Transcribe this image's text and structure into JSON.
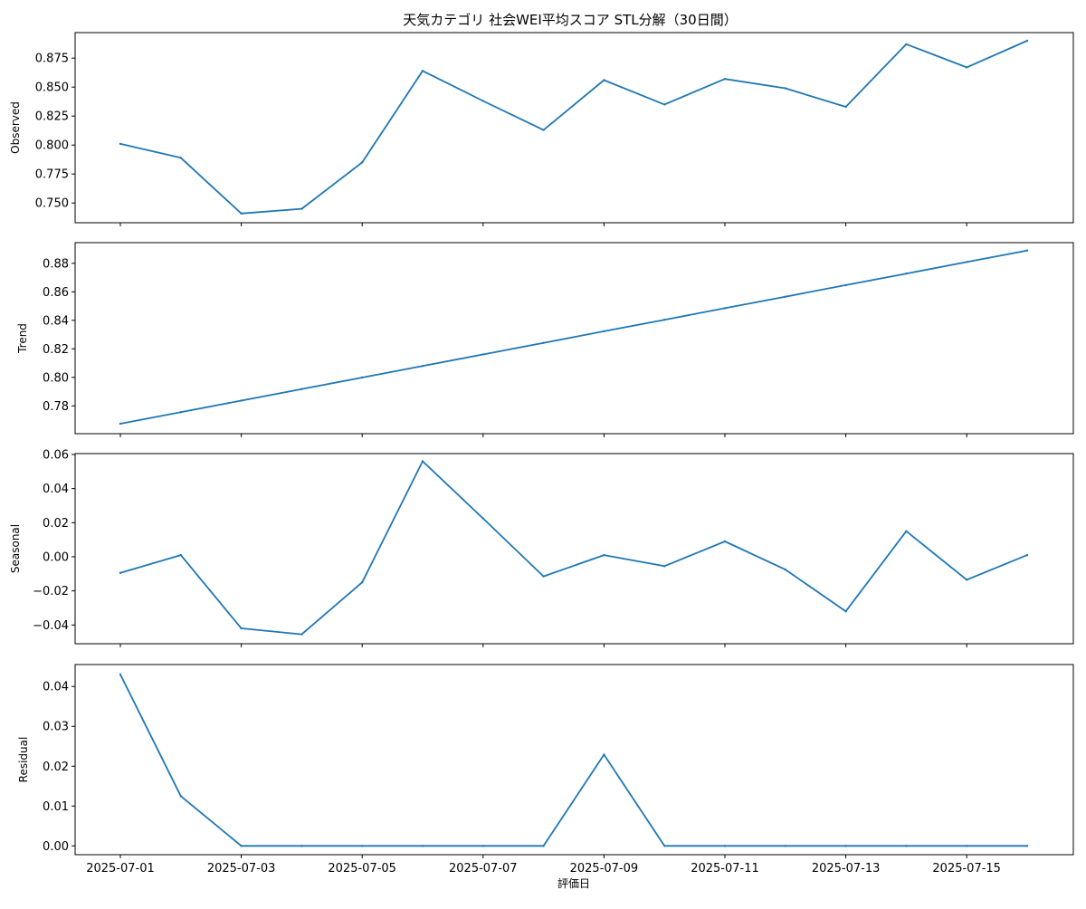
{
  "chart_data": {
    "type": "line",
    "title": "天気カテゴリ 社会WEI平均スコア STL分解（30日間）",
    "xlabel": "評価日",
    "x": [
      "2025-07-01",
      "2025-07-02",
      "2025-07-03",
      "2025-07-04",
      "2025-07-05",
      "2025-07-06",
      "2025-07-07",
      "2025-07-08",
      "2025-07-09",
      "2025-07-10",
      "2025-07-11",
      "2025-07-12",
      "2025-07-13",
      "2025-07-14",
      "2025-07-15",
      "2025-07-16"
    ],
    "x_tick_labels": [
      "2025-07-01",
      "2025-07-03",
      "2025-07-05",
      "2025-07-07",
      "2025-07-09",
      "2025-07-11",
      "2025-07-13",
      "2025-07-15"
    ],
    "grid": false,
    "line_color": "#1f77b4",
    "panels": [
      {
        "ylabel": "Observed",
        "ylim": [
          0.733,
          0.897
        ],
        "yticks": [
          0.75,
          0.775,
          0.8,
          0.825,
          0.85,
          0.875
        ],
        "ytick_labels": [
          "0.750",
          "0.775",
          "0.800",
          "0.825",
          "0.850",
          "0.875"
        ],
        "values": [
          0.801,
          0.789,
          0.741,
          0.745,
          0.785,
          0.864,
          0.838,
          0.813,
          0.856,
          0.835,
          0.857,
          0.849,
          0.833,
          0.887,
          0.867,
          0.89
        ]
      },
      {
        "ylabel": "Trend",
        "ylim": [
          0.7605,
          0.8945
        ],
        "yticks": [
          0.78,
          0.8,
          0.82,
          0.84,
          0.86,
          0.88
        ],
        "ytick_labels": [
          "0.78",
          "0.80",
          "0.82",
          "0.84",
          "0.86",
          "0.88"
        ],
        "values": [
          0.7675,
          0.7756,
          0.7837,
          0.7918,
          0.7999,
          0.808,
          0.8161,
          0.8242,
          0.8323,
          0.8404,
          0.8485,
          0.8566,
          0.8647,
          0.8728,
          0.8809,
          0.889
        ]
      },
      {
        "ylabel": "Seasonal",
        "ylim": [
          -0.051,
          0.0605
        ],
        "yticks": [
          -0.04,
          -0.02,
          0.0,
          0.02,
          0.04,
          0.06
        ],
        "ytick_labels": [
          "−0.04",
          "−0.02",
          "0.00",
          "0.02",
          "0.04",
          "0.06"
        ],
        "values": [
          -0.0095,
          0.001,
          -0.042,
          -0.0455,
          -0.015,
          0.056,
          0.0225,
          -0.0115,
          0.001,
          -0.0055,
          0.009,
          -0.0075,
          -0.032,
          0.015,
          -0.0135,
          0.001
        ]
      },
      {
        "ylabel": "Residual",
        "ylim": [
          -0.0022,
          0.0455
        ],
        "yticks": [
          0.0,
          0.01,
          0.02,
          0.03,
          0.04
        ],
        "ytick_labels": [
          "0.00",
          "0.01",
          "0.02",
          "0.03",
          "0.04"
        ],
        "values": [
          0.043,
          0.0125,
          0.0,
          0.0,
          0.0,
          0.0,
          0.0,
          0.0,
          0.0229,
          0.0,
          0.0,
          0.0,
          0.0,
          0.0,
          0.0,
          0.0
        ]
      }
    ]
  }
}
